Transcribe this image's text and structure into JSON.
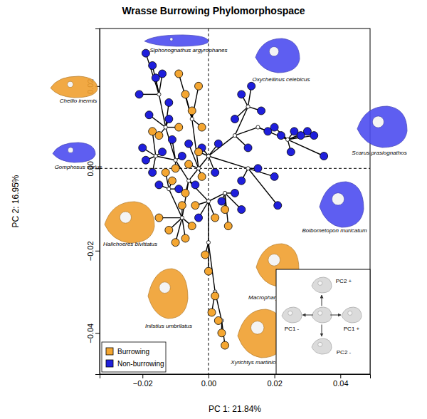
{
  "chart_data": {
    "type": "scatter",
    "title": "Wrasse Burrowing Phylomorphospace",
    "x_label": "PC 1: 21.84%",
    "y_label": "PC 2: 16.95%",
    "xlim": [
      -0.033,
      0.049
    ],
    "ylim": [
      -0.05,
      0.034
    ],
    "xticks": [
      {
        "value": -0.02,
        "label": "−0.02"
      },
      {
        "value": 0,
        "label": "0.00"
      },
      {
        "value": 0.02,
        "label": "0.02"
      },
      {
        "value": 0.04,
        "label": "0.04"
      }
    ],
    "yticks": [
      {
        "value": -0.04,
        "label": "−0.04"
      },
      {
        "value": -0.02,
        "label": "−0.02"
      },
      {
        "value": 0,
        "label": "0.00"
      },
      {
        "value": 0.02,
        "label": "0.02"
      }
    ],
    "reference_lines": {
      "x": [
        0
      ],
      "y": [
        0
      ]
    },
    "legend": "bottom-left",
    "series": [
      {
        "name": "Burrowing",
        "color": "#f4a631",
        "marker": "circle",
        "x": [
          -0.003,
          -0.007,
          -0.009,
          -0.005,
          -0.002,
          -0.009,
          -0.015,
          -0.013,
          -0.011,
          -0.015,
          -0.012,
          -0.01,
          -0.007,
          -0.005,
          -0.008,
          -0.004,
          0.002,
          0.005,
          -0.001,
          0.0,
          0.002,
          0.001,
          0.003,
          0.004,
          0.005,
          -0.006,
          -0.002,
          -0.01,
          -0.003,
          -0.007,
          -0.017,
          0.006
        ],
        "y": [
          0.02,
          0.018,
          0.023,
          0.014,
          0.01,
          0.01,
          0.008,
          -0.001,
          -0.003,
          -0.012,
          -0.015,
          -0.018,
          -0.017,
          -0.014,
          -0.009,
          -0.009,
          -0.012,
          -0.01,
          -0.021,
          -0.025,
          -0.031,
          -0.035,
          -0.037,
          -0.04,
          -0.043,
          0.001,
          -0.002,
          0.0,
          0.004,
          -0.006,
          0.009,
          -0.014
        ],
        "parent": [
          4,
          4,
          4,
          4,
          4,
          2,
          2,
          16,
          16,
          15,
          15,
          15,
          15,
          15,
          15,
          11,
          11,
          18,
          12,
          12,
          13,
          13,
          14,
          14,
          14,
          19,
          19,
          1,
          5,
          0,
          17,
          18
        ]
      },
      {
        "name": "Non-burrowing",
        "color": "#1f1fdc",
        "marker": "circle",
        "x": [
          -0.019,
          -0.017,
          -0.016,
          -0.014,
          -0.021,
          -0.012,
          -0.018,
          -0.02,
          -0.019,
          -0.017,
          -0.014,
          -0.011,
          -0.008,
          -0.006,
          -0.002,
          0.003,
          0.008,
          0.01,
          0.013,
          0.016,
          0.018,
          0.02,
          0.022,
          0.026,
          0.028,
          0.03,
          0.032,
          0.035,
          0.025,
          0.012,
          0.015,
          0.02,
          0.021,
          0.01,
          0.004,
          0.008,
          0.01,
          -0.003,
          -0.009,
          -0.015,
          -0.004,
          0.002,
          -0.012
        ],
        "y": [
          0.028,
          0.025,
          0.022,
          0.023,
          0.018,
          0.016,
          0.013,
          0.005,
          0.002,
          -0.001,
          0.004,
          0.007,
          0.003,
          0.006,
          0.005,
          0.006,
          0.012,
          0.018,
          0.02,
          0.014,
          0.009,
          0.01,
          0.008,
          0.009,
          0.008,
          0.009,
          0.008,
          0.003,
          0.004,
          0.005,
          0.0,
          -0.002,
          -0.009,
          -0.003,
          -0.008,
          -0.006,
          -0.01,
          -0.012,
          -0.005,
          -0.004,
          -0.004,
          -0.001,
          0.012
        ],
        "parent": [
          3,
          3,
          3,
          3,
          3,
          2,
          2,
          17,
          17,
          17,
          17,
          1,
          1,
          19,
          5,
          5,
          9,
          9,
          9,
          9,
          7,
          8,
          8,
          8,
          8,
          8,
          8,
          8,
          8,
          6,
          10,
          10,
          10,
          10,
          18,
          18,
          18,
          11,
          16,
          16,
          0,
          5,
          2
        ]
      }
    ],
    "nodes": {
      "x": [
        -0.006,
        -0.01,
        -0.013,
        -0.015,
        -0.005,
        0.0,
        0.008,
        0.015,
        0.024,
        0.012,
        0.012,
        0.0,
        0.0,
        0.002,
        0.004,
        -0.008,
        -0.012,
        -0.016,
        0.005,
        -0.003
      ],
      "y": [
        -0.003,
        0.002,
        0.01,
        0.018,
        0.012,
        0.003,
        0.008,
        0.01,
        0.007,
        0.015,
        0.0,
        -0.008,
        -0.018,
        -0.03,
        -0.037,
        -0.012,
        -0.005,
        0.003,
        -0.006,
        0.0
      ],
      "parent": [
        null,
        0,
        1,
        2,
        19,
        19,
        5,
        6,
        7,
        6,
        5,
        0,
        11,
        12,
        13,
        0,
        15,
        1,
        11,
        0
      ]
    },
    "annotations": [
      {
        "text": "Siphonognathus argyrophanes",
        "color": "#4d4df0"
      },
      {
        "text": "Oxycheilinus celebicus",
        "color": "#4d4df0"
      },
      {
        "text": "Cheilio inermis",
        "color": "#f0a030"
      },
      {
        "text": "Gomphosus varius",
        "color": "#4d4df0"
      },
      {
        "text": "Scarus prasiognathos",
        "color": "#4d4df0"
      },
      {
        "text": "Bolbometopon muricatum",
        "color": "#4d4df0"
      },
      {
        "text": "Halichoeres bivittatus",
        "color": "#f0a030"
      },
      {
        "text": "Macropharyngodon meleagris",
        "color": "#f0a030"
      },
      {
        "text": "Iniistius umbrilatus",
        "color": "#f0a030"
      },
      {
        "text": "Xyrichtys martinicensis",
        "color": "#f0a030"
      }
    ],
    "inset_labels": [
      "PC2 +",
      "PC1 -",
      "PC1 +",
      "PC2 -"
    ]
  }
}
